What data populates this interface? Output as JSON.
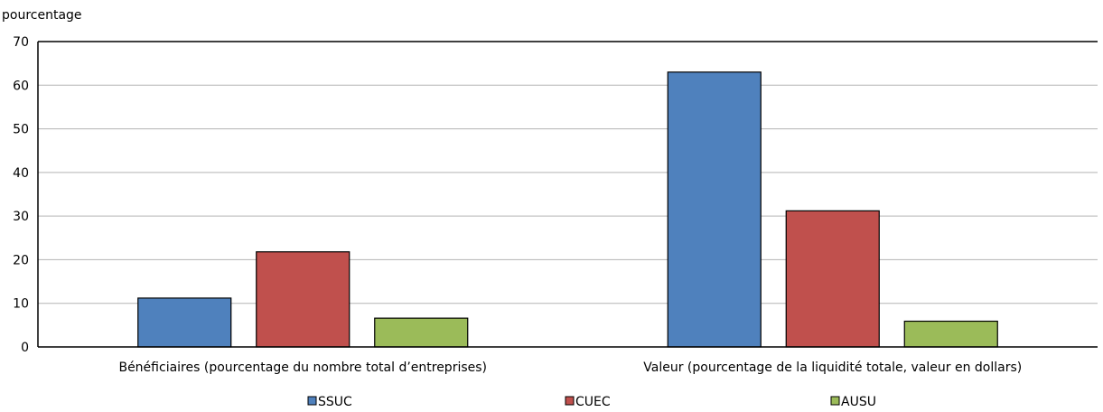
{
  "chart_data": {
    "type": "bar",
    "ylabel": "pourcentage",
    "ylim": [
      0,
      70
    ],
    "yticks": [
      0,
      10,
      20,
      30,
      40,
      50,
      60,
      70
    ],
    "grid": true,
    "legend_position": "bottom",
    "categories": [
      "Bénéficiaires (pourcentage du nombre total d’entreprises)",
      "Valeur (pourcentage de la liquidité totale, valeur en dollars)"
    ],
    "series": [
      {
        "name": "SSUC",
        "color": "#4f81bd",
        "values": [
          11.2,
          63.0
        ]
      },
      {
        "name": "CUEC",
        "color": "#c0504d",
        "values": [
          21.8,
          31.2
        ]
      },
      {
        "name": "AUSU",
        "color": "#9bbb59",
        "values": [
          6.6,
          5.9
        ]
      }
    ]
  }
}
